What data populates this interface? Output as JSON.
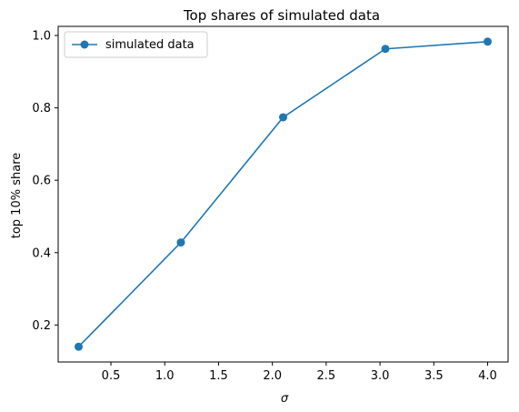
{
  "chart_data": {
    "type": "line",
    "title": "Top shares of simulated data",
    "xlabel": "σ",
    "ylabel": "top 10% share",
    "x": [
      0.2,
      1.15,
      2.1,
      3.05,
      4.0
    ],
    "series": [
      {
        "name": "simulated data",
        "values": [
          0.14,
          0.428,
          0.774,
          0.963,
          0.983
        ]
      }
    ],
    "xlim": [
      0.01,
      4.19
    ],
    "ylim": [
      0.0978,
      1.0252
    ],
    "xticks": [
      0.5,
      1.0,
      1.5,
      2.0,
      2.5,
      3.0,
      3.5,
      4.0
    ],
    "xtick_labels": [
      "0.5",
      "1.0",
      "1.5",
      "2.0",
      "2.5",
      "3.0",
      "3.5",
      "4.0"
    ],
    "yticks": [
      0.2,
      0.4,
      0.6,
      0.8,
      1.0
    ],
    "ytick_labels": [
      "0.2",
      "0.4",
      "0.6",
      "0.8",
      "1.0"
    ],
    "legend_position": "top-left",
    "grid": false,
    "colors": {
      "series": "#1f77b4"
    }
  }
}
